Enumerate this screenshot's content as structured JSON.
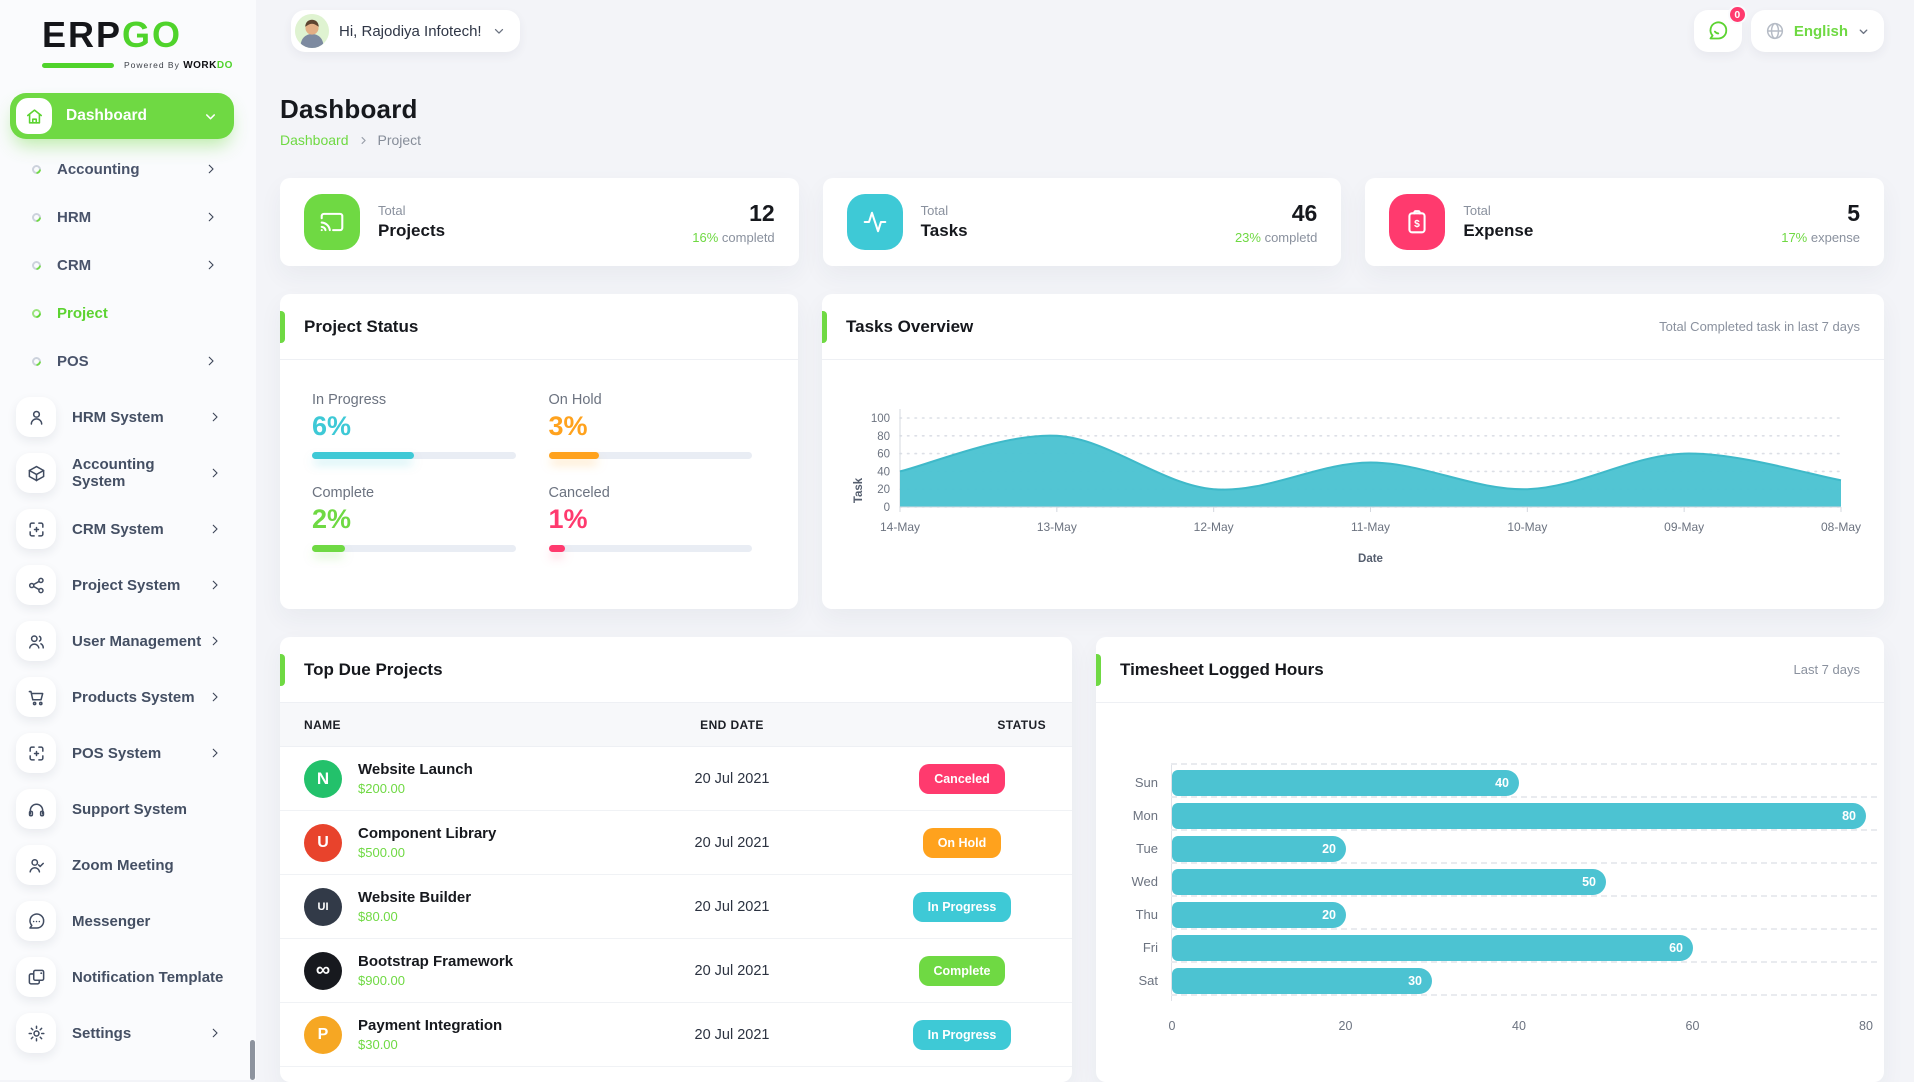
{
  "brand": {
    "erp": "ERP",
    "go": "GO",
    "powered_by": "Powered By",
    "workdo_1": "WORK",
    "workdo_2": "DO"
  },
  "colors": {
    "primary": "#6fd943",
    "teal": "#3ec9d6",
    "orange": "#ffa21d",
    "pink": "#ff3a6e",
    "chart": "#4cc3d2"
  },
  "header": {
    "greeting": "Hi, Rajodiya Infotech!",
    "notification_badge": "0",
    "language": "English"
  },
  "page": {
    "title": "Dashboard",
    "breadcrumb_root": "Dashboard",
    "breadcrumb_current": "Project"
  },
  "sidebar": {
    "dashboard_label": "Dashboard",
    "submenu": [
      {
        "label": "Accounting",
        "chevron": true,
        "active": false
      },
      {
        "label": "HRM",
        "chevron": true,
        "active": false
      },
      {
        "label": "CRM",
        "chevron": true,
        "active": false
      },
      {
        "label": "Project",
        "chevron": false,
        "active": true
      },
      {
        "label": "POS",
        "chevron": true,
        "active": false
      }
    ],
    "systems": [
      {
        "label": "HRM System",
        "icon": "user",
        "chevron": true
      },
      {
        "label": "Accounting System",
        "icon": "package",
        "chevron": true
      },
      {
        "label": "CRM System",
        "icon": "capture",
        "chevron": true
      },
      {
        "label": "Project System",
        "icon": "share",
        "chevron": true
      },
      {
        "label": "User Management",
        "icon": "users",
        "chevron": true
      },
      {
        "label": "Products System",
        "icon": "cart",
        "chevron": true
      },
      {
        "label": "POS System",
        "icon": "capture",
        "chevron": true
      },
      {
        "label": "Support System",
        "icon": "headphones",
        "chevron": false
      },
      {
        "label": "Zoom Meeting",
        "icon": "user-check",
        "chevron": false
      },
      {
        "label": "Messenger",
        "icon": "chat",
        "chevron": false
      },
      {
        "label": "Notification Template",
        "icon": "doc",
        "chevron": false
      },
      {
        "label": "Settings",
        "icon": "gear",
        "chevron": true
      }
    ]
  },
  "stats": [
    {
      "label_top": "Total",
      "label": "Projects",
      "value": "12",
      "percent": "16%",
      "caption": "completd",
      "color": "#6fd943",
      "icon": "cast"
    },
    {
      "label_top": "Total",
      "label": "Tasks",
      "value": "46",
      "percent": "23%",
      "caption": "completd",
      "color": "#3ec9d6",
      "icon": "activity"
    },
    {
      "label_top": "Total",
      "label": "Expense",
      "value": "5",
      "percent": "17%",
      "caption": "expense",
      "color": "#ff3a6e",
      "icon": "clipboard-dollar"
    }
  ],
  "project_status": {
    "title": "Project Status",
    "items": [
      {
        "label": "In Progress",
        "value": "6%",
        "color": "#3ec9d6",
        "fill_pct": 50
      },
      {
        "label": "On Hold",
        "value": "3%",
        "color": "#ffa21d",
        "fill_pct": 25
      },
      {
        "label": "Complete",
        "value": "2%",
        "color": "#6fd943",
        "fill_pct": 16
      },
      {
        "label": "Canceled",
        "value": "1%",
        "color": "#ff3a6e",
        "fill_pct": 8
      }
    ]
  },
  "tasks_overview": {
    "title": "Tasks Overview",
    "note": "Total Completed task in last 7 days"
  },
  "top_due": {
    "title": "Top Due Projects",
    "columns": [
      "NAME",
      "END DATE",
      "STATUS"
    ],
    "rows": [
      {
        "name": "Website Launch",
        "price": "$200.00",
        "end_date": "20 Jul 2021",
        "status": "Canceled",
        "status_color": "#ff3a6e",
        "avatar_text": "N",
        "avatar_bg": "#23c16b",
        "avatar_fs": 17
      },
      {
        "name": "Component Library",
        "price": "$500.00",
        "end_date": "20 Jul 2021",
        "status": "On Hold",
        "status_color": "#ffa21d",
        "avatar_text": "U",
        "avatar_bg": "#e8432c",
        "avatar_fs": 16
      },
      {
        "name": "Website Builder",
        "price": "$80.00",
        "end_date": "20 Jul 2021",
        "status": "In Progress",
        "status_color": "#3ec9d6",
        "avatar_text": "UI",
        "avatar_bg": "#323a48",
        "avatar_fs": 11
      },
      {
        "name": "Bootstrap Framework",
        "price": "$900.00",
        "end_date": "20 Jul 2021",
        "status": "Complete",
        "status_color": "#6fd943",
        "avatar_text": "∞",
        "avatar_bg": "#17191e",
        "avatar_fs": 20
      },
      {
        "name": "Payment Integration",
        "price": "$30.00",
        "end_date": "20 Jul 2021",
        "status": "In Progress",
        "status_color": "#3ec9d6",
        "avatar_text": "P",
        "avatar_bg": "#f6a723",
        "avatar_fs": 16
      }
    ]
  },
  "timesheet": {
    "title": "Timesheet Logged Hours",
    "note": "Last 7 days"
  },
  "chart_data": [
    {
      "id": "tasks_overview",
      "type": "area",
      "title": "Tasks Overview",
      "note": "Total Completed task in last 7 days",
      "x": [
        "14-May",
        "13-May",
        "12-May",
        "11-May",
        "10-May",
        "09-May",
        "08-May"
      ],
      "series": [
        {
          "name": "Task",
          "values": [
            40,
            80,
            20,
            50,
            20,
            60,
            30
          ]
        }
      ],
      "xlabel": "Date",
      "ylabel": "Task",
      "ylim": [
        0,
        100
      ],
      "yticks": [
        0,
        20,
        40,
        60,
        80,
        100
      ],
      "grid": true,
      "legend": false,
      "color": "#4cc3d2"
    },
    {
      "id": "timesheet",
      "type": "bar",
      "orientation": "horizontal",
      "title": "Timesheet Logged Hours",
      "note": "Last 7 days",
      "categories": [
        "Sun",
        "Mon",
        "Tue",
        "Wed",
        "Thu",
        "Fri",
        "Sat"
      ],
      "values": [
        40,
        80,
        20,
        50,
        20,
        60,
        30
      ],
      "xlim": [
        0,
        80
      ],
      "xticks": [
        0,
        20,
        40,
        60,
        80
      ],
      "grid": true,
      "value_labels": true,
      "color": "#4cc3d2"
    }
  ]
}
